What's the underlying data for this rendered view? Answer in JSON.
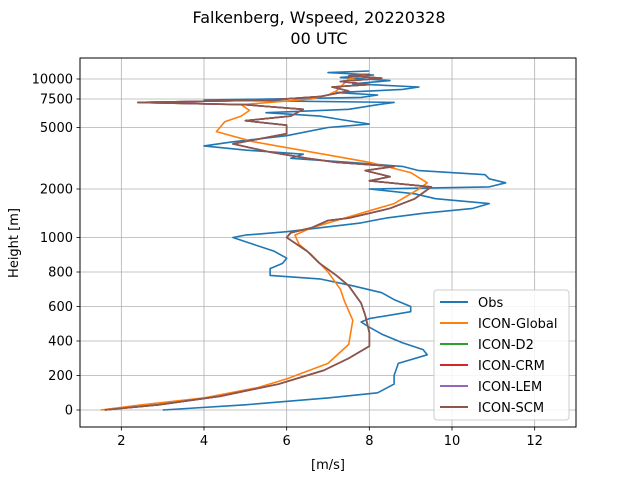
{
  "chart_data": {
    "type": "line",
    "title_line1": "Falkenberg, Wspeed, 20220328",
    "title_line2": "00 UTC",
    "xlabel": "[m/s]",
    "ylabel": "Height [m]",
    "xlim": [
      1.0,
      13.0
    ],
    "xticks": [
      2,
      4,
      6,
      8,
      10,
      12
    ],
    "yticks": [
      {
        "label": "0",
        "height": 0
      },
      {
        "label": "200",
        "height": 200
      },
      {
        "label": "400",
        "height": 400
      },
      {
        "label": "600",
        "height": 600
      },
      {
        "label": "800",
        "height": 800
      },
      {
        "label": "1000",
        "height": 1000
      },
      {
        "label": "2000",
        "height": 2000
      },
      {
        "label": "5000",
        "height": 5000
      },
      {
        "label": "7500",
        "height": 7500
      },
      {
        "label": "10000",
        "height": 10000
      }
    ],
    "grid": true,
    "legend_position": "bottom-right",
    "series": [
      {
        "name": "Obs",
        "color": "#1f77b4",
        "points": [
          [
            3.0,
            0
          ],
          [
            5.0,
            30
          ],
          [
            7.0,
            70
          ],
          [
            8.2,
            100
          ],
          [
            8.6,
            150
          ],
          [
            8.6,
            200
          ],
          [
            8.7,
            270
          ],
          [
            9.4,
            320
          ],
          [
            9.3,
            350
          ],
          [
            8.8,
            390
          ],
          [
            8.3,
            440
          ],
          [
            8.0,
            480
          ],
          [
            7.8,
            510
          ],
          [
            8.0,
            530
          ],
          [
            9.0,
            570
          ],
          [
            9.0,
            600
          ],
          [
            8.6,
            640
          ],
          [
            8.3,
            680
          ],
          [
            7.6,
            720
          ],
          [
            6.8,
            760
          ],
          [
            5.6,
            780
          ],
          [
            5.6,
            820
          ],
          [
            5.9,
            850
          ],
          [
            6.0,
            880
          ],
          [
            5.7,
            920
          ],
          [
            5.2,
            960
          ],
          [
            4.7,
            1000
          ],
          [
            5.0,
            1050
          ],
          [
            6.0,
            1120
          ],
          [
            6.8,
            1200
          ],
          [
            7.8,
            1300
          ],
          [
            8.4,
            1400
          ],
          [
            9.3,
            1500
          ],
          [
            10.5,
            1600
          ],
          [
            10.9,
            1700
          ],
          [
            9.6,
            1800
          ],
          [
            9.1,
            1900
          ],
          [
            8.0,
            2000
          ],
          [
            10.9,
            2100
          ],
          [
            11.3,
            2300
          ],
          [
            10.9,
            2500
          ],
          [
            10.8,
            2700
          ],
          [
            9.2,
            2900
          ],
          [
            8.8,
            3100
          ],
          [
            7.5,
            3300
          ],
          [
            6.1,
            3500
          ],
          [
            6.4,
            3700
          ],
          [
            5.0,
            3900
          ],
          [
            4.0,
            4100
          ],
          [
            4.7,
            4300
          ],
          [
            6.0,
            4600
          ],
          [
            7.0,
            5000
          ],
          [
            8.0,
            5300
          ],
          [
            7.3,
            5700
          ],
          [
            6.8,
            6000
          ],
          [
            5.5,
            6300
          ],
          [
            7.5,
            6600
          ],
          [
            8.2,
            7000
          ],
          [
            8.6,
            7200
          ],
          [
            4.0,
            7400
          ],
          [
            7.8,
            7700
          ],
          [
            8.2,
            8000
          ],
          [
            7.2,
            8300
          ],
          [
            8.8,
            8700
          ],
          [
            9.2,
            9000
          ],
          [
            7.6,
            9400
          ],
          [
            8.5,
            9800
          ],
          [
            7.3,
            10200
          ],
          [
            8.1,
            10500
          ],
          [
            7.0,
            10800
          ],
          [
            8.0,
            11000
          ]
        ]
      },
      {
        "name": "ICON-Global",
        "color": "#ff7f0e",
        "points": [
          [
            1.5,
            0
          ],
          [
            2.5,
            30
          ],
          [
            4.0,
            70
          ],
          [
            5.3,
            130
          ],
          [
            6.0,
            180
          ],
          [
            7.0,
            270
          ],
          [
            7.5,
            380
          ],
          [
            7.6,
            520
          ],
          [
            7.4,
            630
          ],
          [
            7.3,
            700
          ],
          [
            7.0,
            800
          ],
          [
            6.6,
            900
          ],
          [
            6.3,
            960
          ],
          [
            6.2,
            1050
          ],
          [
            6.6,
            1200
          ],
          [
            7.4,
            1400
          ],
          [
            8.6,
            1700
          ],
          [
            9.2,
            2000
          ],
          [
            9.4,
            2300
          ],
          [
            9.0,
            2800
          ],
          [
            8.0,
            3300
          ],
          [
            6.6,
            3800
          ],
          [
            5.2,
            4300
          ],
          [
            4.3,
            4800
          ],
          [
            4.5,
            5500
          ],
          [
            4.9,
            6000
          ],
          [
            5.1,
            6500
          ],
          [
            4.9,
            7000
          ],
          [
            6.6,
            7500
          ],
          [
            7.0,
            8000
          ],
          [
            7.2,
            8500
          ],
          [
            7.3,
            9000
          ],
          [
            7.4,
            9500
          ],
          [
            7.5,
            10000
          ],
          [
            7.9,
            10500
          ]
        ]
      },
      {
        "name": "ICON-D2",
        "color": "#2ca02c",
        "points": [
          [
            1.6,
            0
          ],
          [
            2.9,
            30
          ],
          [
            4.4,
            80
          ],
          [
            5.8,
            150
          ],
          [
            6.9,
            230
          ],
          [
            7.5,
            300
          ],
          [
            8.0,
            370
          ],
          [
            8.0,
            450
          ],
          [
            7.9,
            550
          ],
          [
            7.8,
            620
          ],
          [
            7.5,
            720
          ],
          [
            7.2,
            780
          ],
          [
            6.8,
            850
          ],
          [
            6.5,
            920
          ],
          [
            6.0,
            1000
          ],
          [
            6.1,
            1100
          ],
          [
            6.6,
            1200
          ],
          [
            7.0,
            1350
          ],
          [
            7.5,
            1400
          ],
          [
            8.5,
            1600
          ],
          [
            9.1,
            1800
          ],
          [
            9.5,
            2100
          ],
          [
            8.0,
            2400
          ],
          [
            8.5,
            2600
          ],
          [
            7.9,
            2900
          ],
          [
            8.6,
            3100
          ],
          [
            7.2,
            3300
          ],
          [
            6.5,
            3500
          ],
          [
            5.6,
            3800
          ],
          [
            4.7,
            4200
          ],
          [
            6.0,
            4700
          ],
          [
            6.0,
            5200
          ],
          [
            5.0,
            5600
          ],
          [
            6.1,
            6000
          ],
          [
            6.4,
            6600
          ],
          [
            5.0,
            7000
          ],
          [
            2.4,
            7200
          ],
          [
            5.6,
            7400
          ],
          [
            6.8,
            7800
          ],
          [
            7.5,
            8500
          ],
          [
            7.1,
            9000
          ],
          [
            8.0,
            9300
          ],
          [
            7.3,
            9700
          ],
          [
            8.3,
            10100
          ],
          [
            7.5,
            10400
          ],
          [
            8.0,
            10600
          ]
        ]
      },
      {
        "name": "ICON-CRM",
        "color": "#d62728",
        "points": [
          [
            1.6,
            0
          ],
          [
            2.9,
            30
          ],
          [
            4.4,
            80
          ],
          [
            5.8,
            150
          ],
          [
            6.9,
            230
          ],
          [
            7.5,
            300
          ],
          [
            8.0,
            370
          ],
          [
            8.0,
            450
          ],
          [
            7.9,
            550
          ],
          [
            7.8,
            620
          ],
          [
            7.5,
            720
          ],
          [
            7.2,
            780
          ],
          [
            6.8,
            850
          ],
          [
            6.5,
            920
          ],
          [
            6.0,
            1000
          ],
          [
            6.1,
            1100
          ],
          [
            6.6,
            1200
          ],
          [
            7.0,
            1350
          ],
          [
            7.5,
            1400
          ],
          [
            8.5,
            1600
          ],
          [
            9.1,
            1800
          ],
          [
            9.5,
            2100
          ],
          [
            8.0,
            2400
          ],
          [
            8.5,
            2600
          ],
          [
            7.9,
            2900
          ],
          [
            8.6,
            3100
          ],
          [
            7.2,
            3300
          ],
          [
            6.5,
            3500
          ],
          [
            5.6,
            3800
          ],
          [
            4.7,
            4200
          ],
          [
            6.0,
            4700
          ],
          [
            6.0,
            5200
          ],
          [
            5.0,
            5600
          ],
          [
            6.1,
            6000
          ],
          [
            6.4,
            6600
          ],
          [
            5.0,
            7000
          ],
          [
            2.4,
            7200
          ],
          [
            5.6,
            7400
          ],
          [
            6.8,
            7800
          ],
          [
            7.5,
            8500
          ],
          [
            7.1,
            9000
          ],
          [
            8.0,
            9300
          ],
          [
            7.3,
            9700
          ],
          [
            8.3,
            10100
          ],
          [
            7.5,
            10400
          ],
          [
            8.0,
            10600
          ]
        ]
      },
      {
        "name": "ICON-LEM",
        "color": "#9467bd",
        "points": [
          [
            1.6,
            0
          ],
          [
            2.9,
            30
          ],
          [
            4.4,
            80
          ],
          [
            5.8,
            150
          ],
          [
            6.9,
            230
          ],
          [
            7.5,
            300
          ],
          [
            8.0,
            370
          ],
          [
            8.0,
            450
          ],
          [
            7.9,
            550
          ],
          [
            7.8,
            620
          ],
          [
            7.5,
            720
          ],
          [
            7.2,
            780
          ],
          [
            6.8,
            850
          ],
          [
            6.5,
            920
          ],
          [
            6.0,
            1000
          ],
          [
            6.1,
            1100
          ],
          [
            6.6,
            1200
          ],
          [
            7.0,
            1350
          ],
          [
            7.5,
            1400
          ],
          [
            8.5,
            1600
          ],
          [
            9.1,
            1800
          ],
          [
            9.5,
            2100
          ],
          [
            8.0,
            2400
          ],
          [
            8.5,
            2600
          ],
          [
            7.9,
            2900
          ],
          [
            8.6,
            3100
          ],
          [
            7.2,
            3300
          ],
          [
            6.5,
            3500
          ],
          [
            5.6,
            3800
          ],
          [
            4.7,
            4200
          ],
          [
            6.0,
            4700
          ],
          [
            6.0,
            5200
          ],
          [
            5.0,
            5600
          ],
          [
            6.1,
            6000
          ],
          [
            6.4,
            6600
          ],
          [
            5.0,
            7000
          ],
          [
            2.4,
            7200
          ],
          [
            5.6,
            7400
          ],
          [
            6.8,
            7800
          ],
          [
            7.5,
            8500
          ],
          [
            7.1,
            9000
          ],
          [
            8.0,
            9300
          ],
          [
            7.3,
            9700
          ],
          [
            8.3,
            10100
          ],
          [
            7.5,
            10400
          ],
          [
            8.0,
            10600
          ]
        ]
      },
      {
        "name": "ICON-SCM",
        "color": "#8c564b",
        "points": [
          [
            1.6,
            0
          ],
          [
            2.9,
            30
          ],
          [
            4.4,
            80
          ],
          [
            5.8,
            150
          ],
          [
            6.9,
            230
          ],
          [
            7.5,
            300
          ],
          [
            8.0,
            370
          ],
          [
            8.0,
            450
          ],
          [
            7.9,
            550
          ],
          [
            7.8,
            620
          ],
          [
            7.5,
            720
          ],
          [
            7.2,
            780
          ],
          [
            6.8,
            850
          ],
          [
            6.5,
            920
          ],
          [
            6.0,
            1000
          ],
          [
            6.1,
            1100
          ],
          [
            6.6,
            1200
          ],
          [
            7.0,
            1350
          ],
          [
            7.5,
            1400
          ],
          [
            8.5,
            1600
          ],
          [
            9.1,
            1800
          ],
          [
            9.5,
            2100
          ],
          [
            8.0,
            2400
          ],
          [
            8.5,
            2600
          ],
          [
            7.9,
            2900
          ],
          [
            8.6,
            3100
          ],
          [
            7.2,
            3300
          ],
          [
            6.5,
            3500
          ],
          [
            5.6,
            3800
          ],
          [
            4.7,
            4200
          ],
          [
            6.0,
            4700
          ],
          [
            6.0,
            5200
          ],
          [
            5.0,
            5600
          ],
          [
            6.1,
            6000
          ],
          [
            6.4,
            6600
          ],
          [
            5.0,
            7000
          ],
          [
            2.4,
            7200
          ],
          [
            5.6,
            7400
          ],
          [
            6.8,
            7800
          ],
          [
            7.5,
            8500
          ],
          [
            7.1,
            9000
          ],
          [
            8.0,
            9300
          ],
          [
            7.3,
            9700
          ],
          [
            8.3,
            10100
          ],
          [
            7.5,
            10400
          ],
          [
            8.0,
            10600
          ]
        ]
      }
    ]
  }
}
